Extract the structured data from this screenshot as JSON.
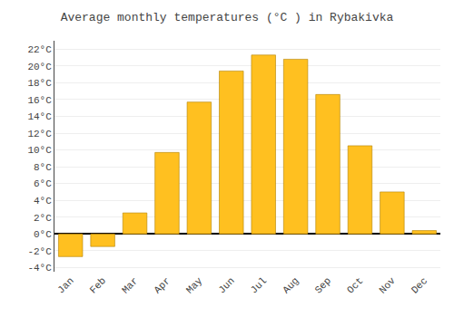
{
  "chart_data": {
    "type": "bar",
    "title": "Average monthly temperatures (°C ) in Rybakivka",
    "categories": [
      "Jan",
      "Feb",
      "Mar",
      "Apr",
      "May",
      "Jun",
      "Jul",
      "Aug",
      "Sep",
      "Oct",
      "Nov",
      "Dec"
    ],
    "values": [
      -2.7,
      -1.5,
      2.5,
      9.7,
      15.7,
      19.4,
      21.3,
      20.8,
      16.6,
      10.5,
      5.0,
      0.4
    ],
    "color": "#FFC020",
    "ylim": [
      -4.5,
      23
    ],
    "yticks": [
      {
        "value": -4,
        "label": "-4°C"
      },
      {
        "value": -2,
        "label": "-2°C"
      },
      {
        "value": 0,
        "label": "0°C"
      },
      {
        "value": 2,
        "label": "2°C"
      },
      {
        "value": 4,
        "label": "4°C"
      },
      {
        "value": 6,
        "label": "6°C"
      },
      {
        "value": 8,
        "label": "8°C"
      },
      {
        "value": 10,
        "label": "10°C"
      },
      {
        "value": 12,
        "label": "12°C"
      },
      {
        "value": 14,
        "label": "14°C"
      },
      {
        "value": 16,
        "label": "16°C"
      },
      {
        "value": 18,
        "label": "18°C"
      },
      {
        "value": 20,
        "label": "20°C"
      },
      {
        "value": 22,
        "label": "22°C"
      }
    ],
    "grid": true
  }
}
